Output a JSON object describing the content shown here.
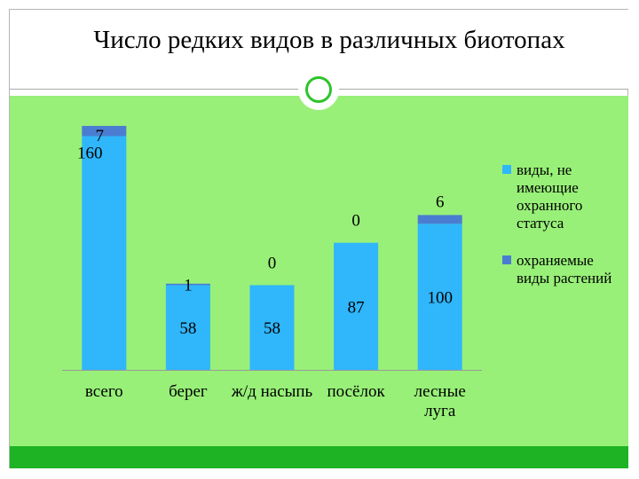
{
  "slide": {
    "title": "Число редких видов в различных биотопах"
  },
  "chart_data": {
    "type": "bar",
    "stacked": true,
    "categories": [
      "всего",
      "берег",
      "ж/д насыпь",
      "посёлок",
      "лесные луга"
    ],
    "series": [
      {
        "name": "виды, не имеющие охранного статуса",
        "values": [
          160,
          58,
          58,
          87,
          100
        ],
        "color": "#2fb6fb"
      },
      {
        "name": "охраняемые виды растений",
        "values": [
          7,
          1,
          0,
          0,
          6
        ],
        "color": "#4a7dd1"
      }
    ],
    "ylim": [
      0,
      170
    ],
    "grid": false,
    "legend": "right"
  }
}
